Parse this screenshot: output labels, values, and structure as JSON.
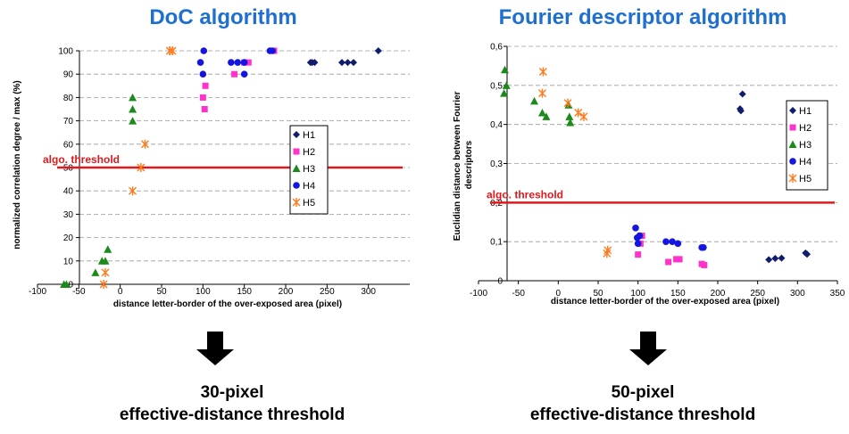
{
  "colors": {
    "title": "#1f6fd1",
    "threshold": "#e0191d",
    "H1": "#101c6c",
    "H2": "#ff33cc",
    "H3": "#1a8a1a",
    "H4": "#1515e0",
    "H5": "#ff7a1a"
  },
  "conclusions": {
    "left": {
      "line1": "30-pixel",
      "line2": "effective-distance threshold"
    },
    "right": {
      "line1": "50-pixel",
      "line2": "effective-distance threshold"
    }
  },
  "chart_data": [
    {
      "type": "scatter",
      "title": "DoC algorithm",
      "xlabel": "distance letter-border of the over-exposed area (pixel)",
      "ylabel": "normalized correlation degree / max (%)",
      "xlim": [
        -100,
        350
      ],
      "ylim": [
        0,
        100
      ],
      "xticks": [
        "-100",
        "-50",
        "0",
        "50",
        "100",
        "150",
        "200",
        "250",
        "300"
      ],
      "yticks": [
        "0",
        "10",
        "20",
        "30",
        "40",
        "50",
        "60",
        "70",
        "80",
        "90",
        "100"
      ],
      "grid": "horizontal dashed",
      "legend_position": "right-middle",
      "threshold": {
        "label": "algo. threshold",
        "y": 50
      },
      "series": [
        {
          "name": "H1",
          "marker": "diamond",
          "points": [
            [
              230,
              95
            ],
            [
              232,
              95
            ],
            [
              235,
              95
            ],
            [
              268,
              95
            ],
            [
              275,
              95
            ],
            [
              282,
              95
            ],
            [
              312,
              100
            ]
          ]
        },
        {
          "name": "H2",
          "marker": "square",
          "points": [
            [
              100,
              80
            ],
            [
              102,
              75
            ],
            [
              103,
              85
            ],
            [
              138,
              90
            ],
            [
              150,
              95
            ],
            [
              155,
              95
            ],
            [
              186,
              100
            ]
          ]
        },
        {
          "name": "H3",
          "marker": "triangle",
          "points": [
            [
              -68,
              0
            ],
            [
              -65,
              0
            ],
            [
              -30,
              5
            ],
            [
              -22,
              10
            ],
            [
              -18,
              10
            ],
            [
              -15,
              15
            ],
            [
              15,
              70
            ],
            [
              15,
              75
            ],
            [
              15,
              80
            ]
          ]
        },
        {
          "name": "H4",
          "marker": "circle",
          "points": [
            [
              97,
              95
            ],
            [
              100,
              90
            ],
            [
              101,
              100
            ],
            [
              134,
              95
            ],
            [
              142,
              95
            ],
            [
              150,
              95
            ],
            [
              150,
              90
            ],
            [
              181,
              100
            ],
            [
              184,
              100
            ]
          ]
        },
        {
          "name": "H5",
          "marker": "star",
          "points": [
            [
              -20,
              0
            ],
            [
              -18,
              5
            ],
            [
              15,
              40
            ],
            [
              25,
              50
            ],
            [
              30,
              60
            ],
            [
              60,
              100
            ],
            [
              63,
              100
            ]
          ]
        }
      ]
    },
    {
      "type": "scatter",
      "title": "Fourier descriptor algorithm",
      "xlabel": "distance letter-border of the over-exposed area (pixel)",
      "ylabel": "Euclidian distance between Fourier descriptors",
      "xlim": [
        -100,
        350
      ],
      "ylim": [
        0,
        0.6
      ],
      "xticks": [
        "-100",
        "-50",
        "0",
        "50",
        "100",
        "150",
        "200",
        "250",
        "300",
        "350"
      ],
      "yticks": [
        "0",
        "0,1",
        "0,2",
        "0,3",
        "0,4",
        "0,5",
        "0,6"
      ],
      "grid": "horizontal dashed",
      "legend_position": "right-middle",
      "threshold": {
        "label": "algo. threshold",
        "y": 0.2
      },
      "series": [
        {
          "name": "H1",
          "marker": "diamond",
          "points": [
            [
              228,
              0.44
            ],
            [
              229,
              0.435
            ],
            [
              231,
              0.478
            ],
            [
              264,
              0.054
            ],
            [
              272,
              0.057
            ],
            [
              280,
              0.058
            ],
            [
              310,
              0.071
            ],
            [
              312,
              0.068
            ]
          ]
        },
        {
          "name": "H2",
          "marker": "square",
          "points": [
            [
              100,
              0.067
            ],
            [
              103,
              0.095
            ],
            [
              103,
              0.115
            ],
            [
              105,
              0.115
            ],
            [
              138,
              0.048
            ],
            [
              148,
              0.055
            ],
            [
              152,
              0.055
            ],
            [
              180,
              0.043
            ],
            [
              183,
              0.04
            ]
          ]
        },
        {
          "name": "H3",
          "marker": "triangle",
          "points": [
            [
              -68,
              0.48
            ],
            [
              -67,
              0.54
            ],
            [
              -65,
              0.5
            ],
            [
              -30,
              0.46
            ],
            [
              -20,
              0.43
            ],
            [
              -15,
              0.42
            ],
            [
              13,
              0.45
            ],
            [
              14,
              0.42
            ],
            [
              15,
              0.405
            ]
          ]
        },
        {
          "name": "H4",
          "marker": "circle",
          "points": [
            [
              97,
              0.135
            ],
            [
              99,
              0.11
            ],
            [
              100,
              0.095
            ],
            [
              102,
              0.115
            ],
            [
              135,
              0.1
            ],
            [
              143,
              0.1
            ],
            [
              150,
              0.095
            ],
            [
              180,
              0.085
            ],
            [
              182,
              0.085
            ]
          ]
        },
        {
          "name": "H5",
          "marker": "star",
          "points": [
            [
              -20,
              0.48
            ],
            [
              -19,
              0.535
            ],
            [
              12,
              0.455
            ],
            [
              25,
              0.43
            ],
            [
              32,
              0.42
            ],
            [
              61,
              0.07
            ],
            [
              62,
              0.078
            ]
          ]
        }
      ]
    }
  ]
}
